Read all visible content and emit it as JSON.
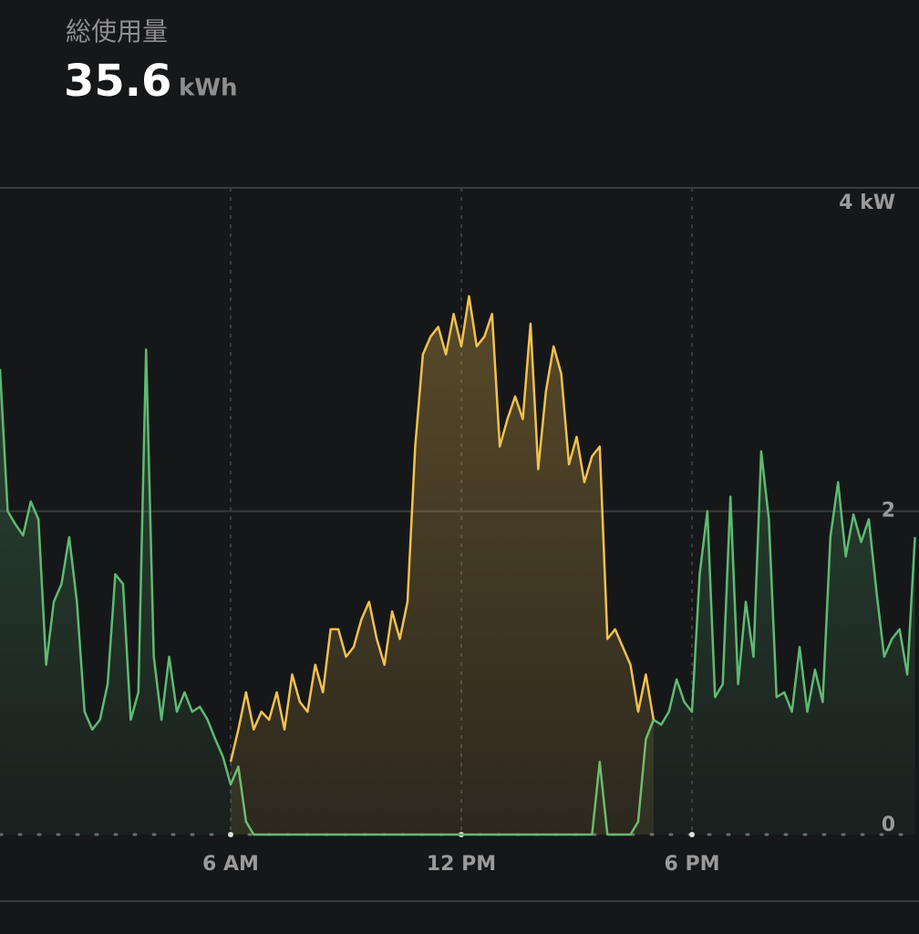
{
  "chart_data": {
    "type": "line",
    "title": "総使用量",
    "total": 35.6,
    "total_unit": "kWh",
    "x": [
      0,
      0.2,
      0.4,
      0.6,
      0.8,
      1,
      1.2,
      1.4,
      1.6,
      1.8,
      2,
      2.2,
      2.4,
      2.6,
      2.8,
      3,
      3.2,
      3.4,
      3.6,
      3.8,
      4,
      4.2,
      4.4,
      4.6,
      4.8,
      5,
      5.2,
      5.4,
      5.6,
      5.8,
      6,
      6.2,
      6.4,
      6.6,
      6.8,
      7,
      7.2,
      7.4,
      7.6,
      7.8,
      8,
      8.2,
      8.4,
      8.6,
      8.8,
      9,
      9.2,
      9.4,
      9.6,
      9.8,
      10,
      10.2,
      10.4,
      10.6,
      10.8,
      11,
      11.2,
      11.4,
      11.6,
      11.8,
      12,
      12.2,
      12.4,
      12.6,
      12.8,
      13,
      13.2,
      13.4,
      13.6,
      13.8,
      14,
      14.2,
      14.4,
      14.6,
      14.8,
      15,
      15.2,
      15.4,
      15.6,
      15.8,
      16,
      16.2,
      16.4,
      16.6,
      16.8,
      17,
      17.2,
      17.4,
      17.6,
      17.8,
      18,
      18.2,
      18.4,
      18.6,
      18.8,
      19,
      19.2,
      19.4,
      19.6,
      19.8,
      20,
      20.2,
      20.4,
      20.6,
      20.8,
      21,
      21.2,
      21.4,
      21.6,
      21.8,
      22,
      22.2,
      22.4,
      22.6,
      22.8,
      23,
      23.2,
      23.4,
      23.6,
      23.8
    ],
    "series": [
      {
        "color": "#5dbb72",
        "values": [
          2.88,
          2.0,
          1.92,
          1.85,
          2.06,
          1.95,
          1.05,
          1.44,
          1.55,
          1.84,
          1.44,
          0.76,
          0.65,
          0.71,
          0.93,
          1.61,
          1.55,
          0.71,
          0.88,
          3.0,
          1.1,
          0.71,
          1.1,
          0.76,
          0.88,
          0.76,
          0.79,
          0.71,
          0.59,
          0.48,
          0.31,
          0.42,
          0.08,
          0,
          0,
          0,
          0,
          0,
          0,
          0,
          0,
          0,
          0,
          0,
          0,
          0,
          0,
          0,
          0,
          0,
          0,
          0,
          0,
          0,
          0,
          0,
          0,
          0,
          0,
          0,
          0,
          0,
          0,
          0,
          0,
          0,
          0,
          0,
          0,
          0,
          0,
          0,
          0,
          0,
          0,
          0,
          0,
          0,
          0.45,
          0,
          0,
          0,
          0,
          0.08,
          0.59,
          0.71,
          0.68,
          0.76,
          0.96,
          0.82,
          0.76,
          1.61,
          2.0,
          0.85,
          0.93,
          2.09,
          0.93,
          1.44,
          1.1,
          2.37,
          1.95,
          0.85,
          0.88,
          0.76,
          1.16,
          0.76,
          1.02,
          0.82,
          1.84,
          2.18,
          1.72,
          1.98,
          1.81,
          1.95,
          1.5,
          1.1,
          1.21,
          1.27,
          0.99,
          1.84
        ]
      },
      {
        "color": "#f2c14e",
        "values": [
          null,
          null,
          null,
          null,
          null,
          null,
          null,
          null,
          null,
          null,
          null,
          null,
          null,
          null,
          null,
          null,
          null,
          null,
          null,
          null,
          null,
          null,
          null,
          null,
          null,
          null,
          null,
          null,
          null,
          null,
          0.45,
          0.65,
          0.88,
          0.65,
          0.76,
          0.71,
          0.88,
          0.65,
          0.99,
          0.82,
          0.76,
          1.05,
          0.88,
          1.27,
          1.27,
          1.1,
          1.16,
          1.33,
          1.44,
          1.21,
          1.05,
          1.38,
          1.21,
          1.44,
          2.4,
          2.97,
          3.08,
          3.14,
          2.97,
          3.22,
          3.02,
          3.33,
          3.02,
          3.08,
          3.22,
          2.4,
          2.57,
          2.71,
          2.57,
          3.16,
          2.26,
          2.74,
          3.02,
          2.85,
          2.29,
          2.46,
          2.18,
          2.34,
          2.4,
          1.21,
          1.27,
          1.16,
          1.05,
          0.76,
          0.99,
          0.71,
          null,
          null,
          null,
          null,
          null,
          null,
          null,
          null,
          null,
          null,
          null,
          null,
          null,
          null,
          null,
          null,
          null,
          null,
          null,
          null,
          null,
          null,
          null,
          null,
          null,
          null,
          null,
          null,
          null,
          null,
          null,
          null,
          null,
          null
        ]
      }
    ],
    "xlim": [
      0,
      24
    ],
    "xticks": [
      {
        "value": 6,
        "label": "6 AM"
      },
      {
        "value": 12,
        "label": "12 PM"
      },
      {
        "value": 18,
        "label": "6 PM"
      }
    ],
    "ylim": [
      0,
      4
    ],
    "yticks": [
      0,
      2,
      {
        "value": 4,
        "label": "4 kW"
      }
    ],
    "grid": true
  }
}
